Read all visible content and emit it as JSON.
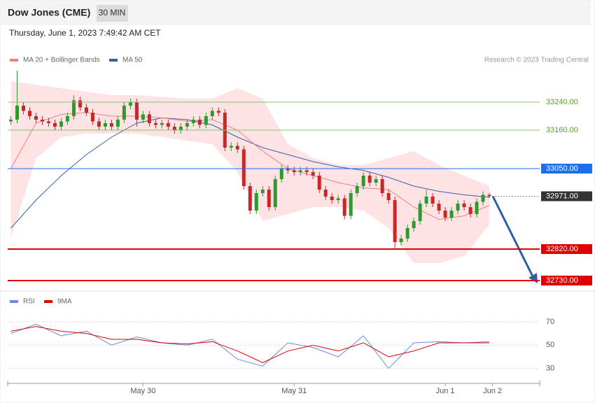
{
  "chart_data": {
    "type": "candlestick",
    "title": "Dow Jones (CME)",
    "interval": "30 MIN",
    "subtitle": "Thursday, June 1, 2023 7:49:42 AM CET",
    "source": "Research © 2023 Trading Central",
    "xlim": [
      -0.5,
      84
    ],
    "xticks": [
      {
        "value": 21,
        "label": "May 30"
      },
      {
        "value": 45,
        "label": "May 31"
      },
      {
        "value": 69,
        "label": "Jun 1"
      },
      {
        "value": 76.5,
        "label": "Jun 2"
      }
    ],
    "ylim": [
      32712,
      33340
    ],
    "up_color": "#2e9a2e",
    "down_color": "#c62828",
    "open": [
      33185,
      33190,
      33230,
      33215,
      33200,
      33190,
      33185,
      33180,
      33170,
      33185,
      33200,
      33245,
      33225,
      33210,
      33185,
      33170,
      33180,
      33170,
      33190,
      33230,
      33240,
      33190,
      33205,
      33180,
      33175,
      33180,
      33170,
      33160,
      33170,
      33180,
      33190,
      33175,
      33200,
      33215,
      33210,
      33110,
      33115,
      33105,
      33000,
      32930,
      32980,
      32990,
      32940,
      33020,
      33050,
      33045,
      33040,
      33045,
      33040,
      33030,
      32990,
      32970,
      32960,
      32965,
      32915,
      32980,
      33000,
      33030,
      33010,
      33020,
      32980,
      32960,
      32840,
      32850,
      32880,
      32900,
      32950,
      32970,
      32950,
      32930,
      32910,
      32930,
      32950,
      32940,
      32920,
      32955,
      32975
    ],
    "high": [
      33200,
      33330,
      33240,
      33225,
      33210,
      33200,
      33195,
      33190,
      33195,
      33210,
      33260,
      33255,
      33235,
      33220,
      33195,
      33190,
      33190,
      33200,
      33240,
      33250,
      33250,
      33215,
      33215,
      33190,
      33190,
      33190,
      33180,
      33180,
      33190,
      33200,
      33200,
      33210,
      33225,
      33225,
      33220,
      33125,
      33125,
      33115,
      33010,
      32990,
      33000,
      33000,
      33030,
      33060,
      33060,
      33055,
      33055,
      33055,
      33050,
      33040,
      33000,
      32980,
      32975,
      32975,
      32990,
      33010,
      33040,
      33040,
      33030,
      33030,
      32990,
      32970,
      32860,
      32890,
      32910,
      32960,
      32990,
      32980,
      32960,
      32940,
      32940,
      32960,
      32960,
      32950,
      32965,
      32985,
      32980
    ],
    "low": [
      33175,
      33180,
      33205,
      33190,
      33180,
      33175,
      33170,
      33160,
      33160,
      33175,
      33190,
      33215,
      33200,
      33175,
      33160,
      33160,
      33160,
      33160,
      33180,
      33220,
      33170,
      33180,
      33170,
      33165,
      33165,
      33160,
      33150,
      33150,
      33160,
      33170,
      33165,
      33165,
      33190,
      33200,
      33100,
      33100,
      33095,
      32990,
      32920,
      32920,
      32970,
      32930,
      32930,
      33010,
      33035,
      33030,
      33030,
      33030,
      33020,
      32980,
      32960,
      32950,
      32950,
      32905,
      32905,
      32970,
      32990,
      33000,
      33000,
      32970,
      32950,
      32820,
      32830,
      32840,
      32870,
      32890,
      32940,
      32940,
      32920,
      32900,
      32900,
      32920,
      32930,
      32910,
      32910,
      32945,
      32965
    ],
    "close": [
      33190,
      33230,
      33215,
      33200,
      33190,
      33185,
      33180,
      33170,
      33185,
      33200,
      33245,
      33225,
      33210,
      33185,
      33170,
      33180,
      33170,
      33190,
      33230,
      33240,
      33190,
      33205,
      33180,
      33175,
      33180,
      33170,
      33160,
      33170,
      33180,
      33190,
      33175,
      33200,
      33215,
      33210,
      33110,
      33115,
      33105,
      33000,
      32930,
      32980,
      32990,
      32940,
      33020,
      33050,
      33045,
      33040,
      33045,
      33040,
      33030,
      32990,
      32970,
      32960,
      32965,
      32915,
      32980,
      33000,
      33030,
      33010,
      33020,
      32980,
      32960,
      32840,
      32850,
      32880,
      32900,
      32950,
      32970,
      32950,
      32930,
      32910,
      32930,
      32950,
      32940,
      32920,
      32955,
      32975,
      32971
    ],
    "series": [
      {
        "name": "MA 20 + Bollinger Bands",
        "color": "#f08080",
        "band_color": "#fde3e3",
        "x": [
          0,
          4,
          8,
          12,
          16,
          20,
          24,
          28,
          32,
          36,
          40,
          44,
          48,
          52,
          56,
          60,
          64,
          68,
          72,
          76
        ],
        "values": [
          33050,
          33180,
          33205,
          33210,
          33200,
          33200,
          33195,
          33185,
          33190,
          33160,
          33100,
          33050,
          33030,
          33010,
          32995,
          32990,
          32940,
          32905,
          32915,
          32945
        ],
        "upper": [
          33300,
          33290,
          33280,
          33270,
          33260,
          33260,
          33255,
          33250,
          33250,
          33280,
          33250,
          33120,
          33080,
          33060,
          33060,
          33080,
          33100,
          33060,
          33030,
          33000
        ],
        "lower": [
          32850,
          33080,
          33140,
          33150,
          33150,
          33150,
          33140,
          33130,
          33120,
          33040,
          32900,
          32920,
          32940,
          32940,
          32930,
          32880,
          32780,
          32780,
          32800,
          32890
        ]
      },
      {
        "name": "MA 50",
        "color": "#3a5fa8",
        "x": [
          0,
          4,
          8,
          12,
          16,
          20,
          24,
          28,
          32,
          36,
          40,
          44,
          48,
          52,
          56,
          60,
          64,
          68,
          72,
          76
        ],
        "values": [
          32880,
          32960,
          33030,
          33090,
          33140,
          33180,
          33195,
          33190,
          33175,
          33140,
          33110,
          33090,
          33070,
          33055,
          33045,
          33025,
          33000,
          32985,
          32975,
          32968
        ]
      }
    ],
    "levels": [
      {
        "value": 33240,
        "label": "33240.00",
        "color": "#8dc26f",
        "filled": false
      },
      {
        "value": 33160,
        "label": "33160.00",
        "color": "#8dc26f",
        "filled": false
      },
      {
        "value": 33050,
        "label": "33050.00",
        "color": "#1e6ff0",
        "filled": true
      },
      {
        "value": 32971,
        "label": "32971.00",
        "color": "#333333",
        "filled": true
      },
      {
        "value": 32820,
        "label": "32820.00",
        "color": "#e00000",
        "filled": true
      },
      {
        "value": 32730,
        "label": "32730.00",
        "color": "#e00000",
        "filled": true
      }
    ],
    "rsi": {
      "ylim": [
        19,
        79
      ],
      "yticks": [
        70,
        50,
        30
      ],
      "series": [
        {
          "name": "RSI",
          "color": "#6a8be0",
          "x": [
            0,
            4,
            8,
            12,
            16,
            20,
            24,
            28,
            32,
            36,
            40,
            44,
            48,
            52,
            56,
            60,
            64,
            68,
            72,
            76
          ],
          "values": [
            60,
            68,
            58,
            62,
            50,
            57,
            52,
            50,
            55,
            38,
            32,
            52,
            48,
            40,
            58,
            30,
            52,
            53,
            52,
            53
          ]
        },
        {
          "name": "9MA",
          "color": "#e00000",
          "x": [
            0,
            4,
            8,
            12,
            16,
            20,
            24,
            28,
            32,
            36,
            40,
            44,
            48,
            52,
            56,
            60,
            64,
            68,
            72,
            76
          ],
          "values": [
            62,
            66,
            62,
            60,
            55,
            55,
            52,
            51,
            53,
            45,
            35,
            45,
            50,
            45,
            52,
            40,
            45,
            52,
            52,
            52
          ]
        }
      ]
    }
  }
}
